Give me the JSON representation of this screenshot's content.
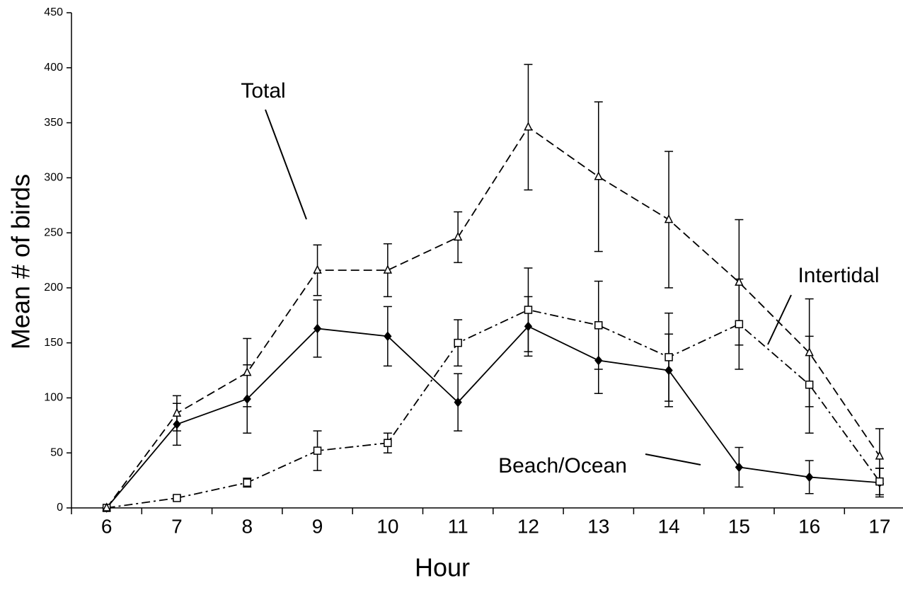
{
  "chart_data": {
    "type": "line",
    "x_label": "Hour",
    "y_label": "Mean # of birds",
    "categories": [
      6,
      7,
      8,
      9,
      10,
      11,
      12,
      13,
      14,
      15,
      16,
      17
    ],
    "ylim": [
      0,
      450
    ],
    "yticks": [
      0,
      50,
      100,
      150,
      200,
      250,
      300,
      350,
      400,
      450
    ],
    "grid": false,
    "series": [
      {
        "name": "Beach/Ocean",
        "color": "#000000",
        "line_style": "solid",
        "marker": "diamond",
        "values": [
          0,
          76,
          99,
          163,
          156,
          96,
          165,
          134,
          125,
          37,
          28,
          23
        ],
        "errors": [
          0,
          19,
          31,
          26,
          27,
          26,
          27,
          30,
          33,
          18,
          15,
          13
        ]
      },
      {
        "name": "Intertidal",
        "color": "#000000",
        "line_style": "dashdot",
        "marker": "square",
        "values": [
          0,
          9,
          23,
          52,
          59,
          150,
          180,
          166,
          137,
          167,
          112,
          24
        ],
        "errors": [
          0,
          2,
          4,
          18,
          9,
          21,
          38,
          40,
          40,
          41,
          44,
          12
        ]
      },
      {
        "name": "Total",
        "color": "#000000",
        "line_style": "dashed",
        "marker": "triangle",
        "values": [
          0,
          86,
          123,
          216,
          216,
          246,
          346,
          301,
          262,
          205,
          141,
          47
        ],
        "errors": [
          0,
          16,
          31,
          23,
          24,
          23,
          57,
          68,
          62,
          57,
          49,
          25
        ]
      }
    ]
  }
}
